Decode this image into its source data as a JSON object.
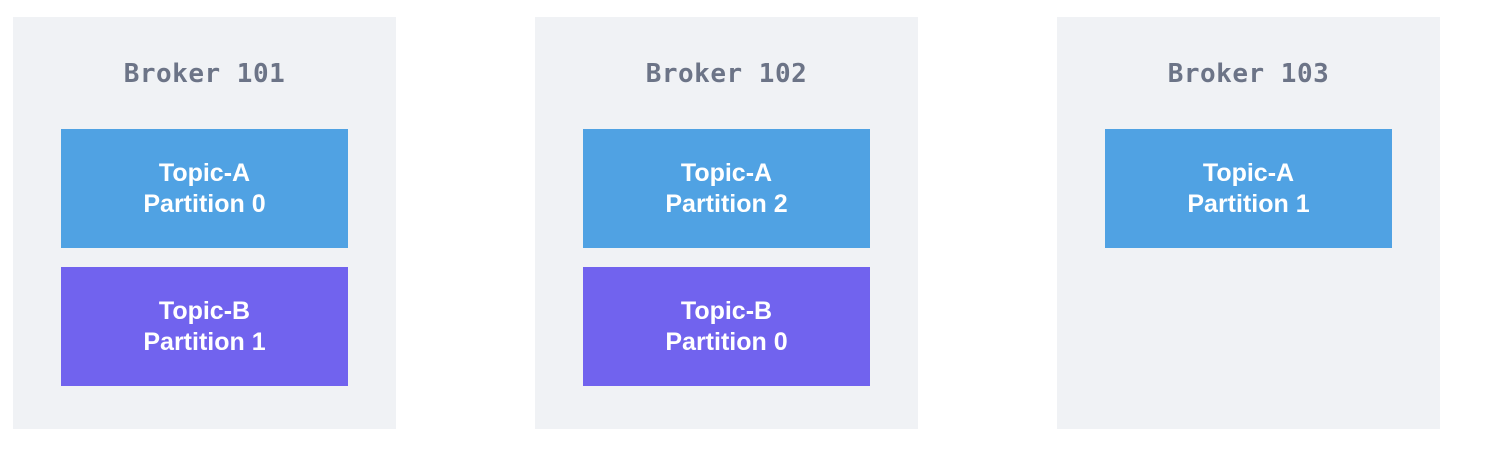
{
  "colors": {
    "broker_background": "#f0f2f5",
    "broker_title": "#6c7487",
    "topic_a": "#50a2e3",
    "topic_b": "#7163ee",
    "partition_text": "#ffffff"
  },
  "brokers": [
    {
      "title": "Broker 101",
      "partitions": [
        {
          "topic": "Topic-A",
          "partition": "Partition 0",
          "color": "#50a2e3"
        },
        {
          "topic": "Topic-B",
          "partition": "Partition 1",
          "color": "#7163ee"
        }
      ]
    },
    {
      "title": "Broker 102",
      "partitions": [
        {
          "topic": "Topic-A",
          "partition": "Partition 2",
          "color": "#50a2e3"
        },
        {
          "topic": "Topic-B",
          "partition": "Partition 0",
          "color": "#7163ee"
        }
      ]
    },
    {
      "title": "Broker 103",
      "partitions": [
        {
          "topic": "Topic-A",
          "partition": "Partition 1",
          "color": "#50a2e3"
        }
      ]
    }
  ]
}
